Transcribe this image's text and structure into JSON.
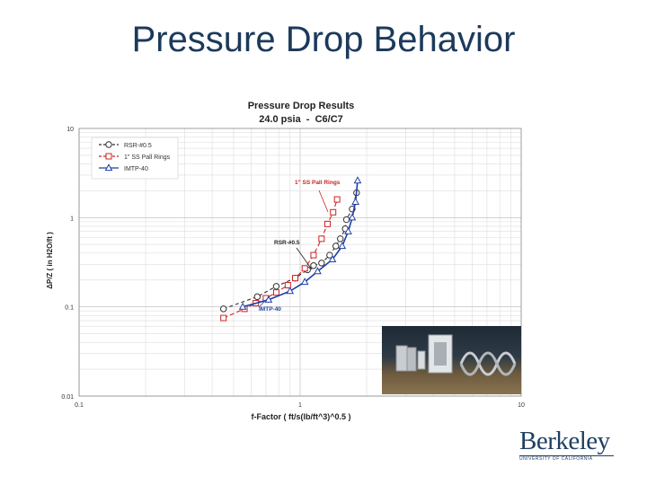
{
  "slide": {
    "title": "Pressure Drop Behavior"
  },
  "logo": {
    "name": "Berkeley",
    "subtitle": "UNIVERSITY OF CALIFORNIA"
  },
  "colors": {
    "rsr": "#333333",
    "pall": "#cc2222",
    "imtp": "#1f3fa8",
    "title": "#1b3a5c"
  },
  "chart_data": {
    "type": "scatter",
    "title": "Pressure Drop Results",
    "subtitle": "24.0 psia  -  C6/C7",
    "xlabel": "f-Factor ( ft/s(lb/ft^3)^0.5 )",
    "ylabel": "ΔP/Z ( in H2O/ft )",
    "xscale": "log",
    "yscale": "log",
    "xlim": [
      0.1,
      10
    ],
    "ylim": [
      0.01,
      10
    ],
    "xticks": [
      "0.1",
      "1",
      "10"
    ],
    "yticks": [
      "10",
      "1",
      "0.1",
      "0.01"
    ],
    "grid": true,
    "legend_position": "top-left",
    "legend": [
      "RSR-#0.5",
      "1\" SS Pall Rings",
      "IMTP-40"
    ],
    "series": [
      {
        "name": "RSR-#0.5",
        "marker": "circle",
        "color": "#333333",
        "x": [
          0.45,
          0.64,
          0.78,
          0.95,
          1.08,
          1.15,
          1.25,
          1.36,
          1.45,
          1.52,
          1.6,
          1.62,
          1.72,
          1.8
        ],
        "y": [
          0.095,
          0.13,
          0.17,
          0.21,
          0.26,
          0.29,
          0.31,
          0.38,
          0.48,
          0.58,
          0.75,
          0.95,
          1.25,
          1.9
        ]
      },
      {
        "name": "1\" SS Pall Rings",
        "marker": "square",
        "color": "#cc2222",
        "x": [
          0.45,
          0.56,
          0.63,
          0.7,
          0.78,
          0.88,
          0.95,
          1.05,
          1.15,
          1.25,
          1.33,
          1.41,
          1.47
        ],
        "y": [
          0.075,
          0.095,
          0.11,
          0.125,
          0.145,
          0.175,
          0.21,
          0.27,
          0.38,
          0.58,
          0.85,
          1.15,
          1.6
        ]
      },
      {
        "name": "IMTP-40",
        "marker": "triangle",
        "color": "#1f3fa8",
        "x": [
          0.55,
          0.72,
          0.9,
          1.05,
          1.2,
          1.4,
          1.55,
          1.65,
          1.72,
          1.78,
          1.82
        ],
        "y": [
          0.1,
          0.12,
          0.15,
          0.19,
          0.25,
          0.34,
          0.48,
          0.7,
          1.0,
          1.5,
          2.6
        ]
      }
    ],
    "annotations": [
      "1\" SS Pall Rings",
      "RSR-#0.5",
      "IMTP-40"
    ]
  }
}
